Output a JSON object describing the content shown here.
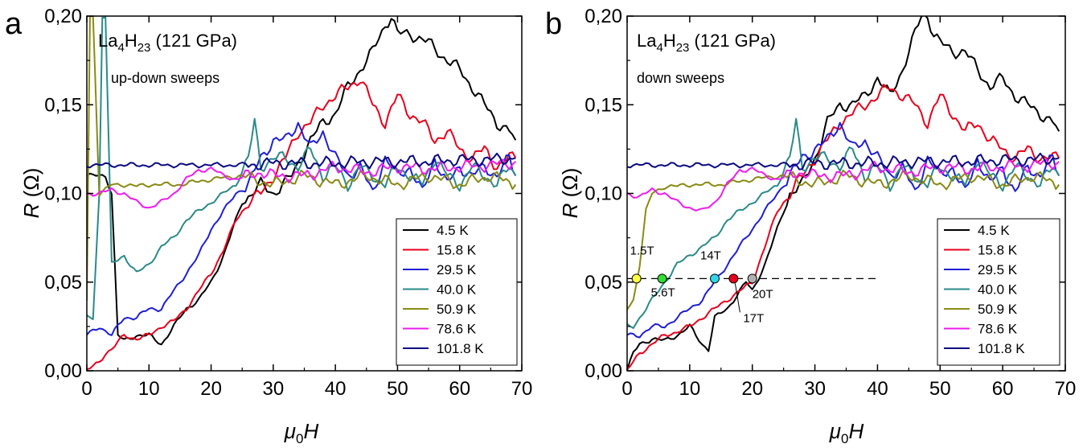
{
  "panel_letters": [
    "a",
    "b"
  ],
  "panels": [
    {
      "formula_main": "La",
      "formula_sub1": "4",
      "formula_mid": "H",
      "formula_sub2": "23",
      "formula_tail": " (121 GPa)",
      "subtitle": "up-down sweeps"
    },
    {
      "formula_main": "La",
      "formula_sub1": "4",
      "formula_mid": "H",
      "formula_sub2": "23",
      "formula_tail": " (121 GPa)",
      "subtitle": "down sweeps"
    }
  ],
  "axes": {
    "xlabel_main": "μ",
    "xlabel_sub": "0",
    "xlabel_tail": "H",
    "ylabel_main": "R",
    "ylabel_tail": " (Ω)",
    "xlim": [
      0,
      70
    ],
    "ylim": [
      0,
      0.2
    ],
    "xticks": [
      0,
      10,
      20,
      30,
      40,
      50,
      60,
      70
    ],
    "xtick_labels": [
      "0",
      "10",
      "20",
      "30",
      "40",
      "50",
      "60",
      "70"
    ],
    "yticks": [
      0,
      0.05,
      0.1,
      0.15,
      0.2
    ],
    "ytick_labels": [
      "0,00",
      "0,05",
      "0,10",
      "0,15",
      "0,20"
    ]
  },
  "legend": {
    "placement": "bottom-right",
    "entries": [
      {
        "label": "4.5 K",
        "color": "#000000"
      },
      {
        "label": "15.8 K",
        "color": "#e8001c"
      },
      {
        "label": "29.5 K",
        "color": "#1f1fd6"
      },
      {
        "label": "40.0 K",
        "color": "#2a8a8a"
      },
      {
        "label": "50.9 K",
        "color": "#8a8a14"
      },
      {
        "label": "78.6 K",
        "color": "#ee1cee"
      },
      {
        "label": "101.8 K",
        "color": "#0a0a80"
      }
    ]
  },
  "chart_data": [
    {
      "type": "line",
      "panel": "a",
      "xlim": [
        0,
        70
      ],
      "ylim": [
        0,
        0.2
      ],
      "series": [
        {
          "name": "4.5 K",
          "color": "#000000",
          "x": [
            0,
            1.5,
            3,
            4,
            4.5,
            5,
            6,
            8,
            10,
            12,
            14,
            16,
            18,
            20,
            22,
            25,
            28,
            30,
            33,
            36,
            38,
            40,
            42,
            44,
            46,
            48,
            49,
            50,
            52,
            55,
            58,
            60,
            62,
            64,
            66,
            68,
            69
          ],
          "y": [
            0.11,
            0.11,
            0.11,
            0.1,
            0.06,
            0.02,
            0.017,
            0.02,
            0.02,
            0.015,
            0.025,
            0.035,
            0.04,
            0.05,
            0.065,
            0.095,
            0.105,
            0.1,
            0.11,
            0.13,
            0.14,
            0.145,
            0.16,
            0.17,
            0.18,
            0.195,
            0.2,
            0.19,
            0.19,
            0.185,
            0.175,
            0.17,
            0.16,
            0.15,
            0.14,
            0.135,
            0.13
          ]
        },
        {
          "name": "15.8 K",
          "color": "#e8001c",
          "x": [
            0,
            2,
            3,
            4,
            6,
            8,
            10,
            12,
            14,
            16,
            18,
            20,
            22,
            24,
            26,
            28,
            30,
            32,
            34,
            36,
            38,
            40,
            42,
            44,
            46,
            48,
            50,
            52,
            54,
            56,
            58,
            60,
            62,
            64,
            66,
            68,
            69
          ],
          "y": [
            0,
            0.005,
            0.01,
            0.012,
            0.02,
            0.018,
            0.02,
            0.025,
            0.028,
            0.035,
            0.045,
            0.055,
            0.068,
            0.085,
            0.095,
            0.1,
            0.11,
            0.12,
            0.135,
            0.14,
            0.15,
            0.155,
            0.16,
            0.165,
            0.15,
            0.14,
            0.155,
            0.145,
            0.14,
            0.13,
            0.135,
            0.125,
            0.12,
            0.125,
            0.115,
            0.12,
            0.12
          ]
        },
        {
          "name": "29.5 K",
          "color": "#1f1fd6",
          "x": [
            0,
            2,
            4,
            6,
            8,
            10,
            12,
            14,
            16,
            18,
            20,
            22,
            24,
            26,
            28,
            30,
            32,
            34,
            36,
            38,
            40,
            42,
            44,
            46,
            48,
            50,
            52,
            54,
            56,
            58,
            60,
            62,
            64,
            66,
            68,
            69
          ],
          "y": [
            0.02,
            0.025,
            0.02,
            0.03,
            0.03,
            0.035,
            0.035,
            0.045,
            0.055,
            0.065,
            0.08,
            0.09,
            0.1,
            0.105,
            0.12,
            0.13,
            0.13,
            0.14,
            0.125,
            0.135,
            0.12,
            0.11,
            0.115,
            0.1,
            0.12,
            0.11,
            0.115,
            0.1,
            0.12,
            0.105,
            0.115,
            0.11,
            0.115,
            0.11,
            0.12,
            0.11
          ]
        },
        {
          "name": "40.0 K",
          "color": "#2a8a8a",
          "x": [
            0,
            1,
            2,
            2.5,
            3,
            4,
            6,
            8,
            10,
            12,
            14,
            16,
            18,
            20,
            22,
            24,
            26,
            27,
            28,
            30,
            32,
            34,
            36,
            38,
            40,
            42,
            44,
            46,
            48,
            50,
            52,
            54,
            56,
            58,
            60,
            62,
            64,
            66,
            68,
            69
          ],
          "y": [
            0.03,
            0.03,
            0.1,
            0.2,
            0.2,
            0.06,
            0.065,
            0.055,
            0.06,
            0.07,
            0.075,
            0.085,
            0.09,
            0.095,
            0.1,
            0.105,
            0.12,
            0.14,
            0.115,
            0.12,
            0.12,
            0.115,
            0.125,
            0.11,
            0.115,
            0.105,
            0.115,
            0.11,
            0.105,
            0.115,
            0.11,
            0.105,
            0.12,
            0.11,
            0.105,
            0.115,
            0.11,
            0.105,
            0.115,
            0.11
          ]
        },
        {
          "name": "50.9 K",
          "color": "#8a8a14",
          "x": [
            0,
            0.5,
            1,
            1.5,
            2,
            3,
            4,
            6,
            8,
            10,
            15,
            20,
            25,
            30,
            35,
            40,
            45,
            50,
            55,
            60,
            65,
            69
          ],
          "y": [
            0.04,
            0.2,
            0.2,
            0.15,
            0.1,
            0.102,
            0.105,
            0.105,
            0.104,
            0.105,
            0.105,
            0.108,
            0.11,
            0.105,
            0.11,
            0.105,
            0.11,
            0.105,
            0.11,
            0.105,
            0.11,
            0.105
          ]
        },
        {
          "name": "78.6 K",
          "color": "#ee1cee",
          "x": [
            0,
            2,
            4,
            6,
            8,
            10,
            12,
            14,
            16,
            18,
            20,
            22,
            24,
            26,
            28,
            30,
            35,
            40,
            45,
            50,
            55,
            60,
            65,
            69
          ],
          "y": [
            0.1,
            0.1,
            0.102,
            0.1,
            0.095,
            0.092,
            0.095,
            0.1,
            0.108,
            0.113,
            0.114,
            0.11,
            0.108,
            0.11,
            0.112,
            0.11,
            0.11,
            0.115,
            0.112,
            0.115,
            0.114,
            0.115,
            0.116,
            0.118
          ]
        },
        {
          "name": "101.8 K",
          "color": "#0a0a80",
          "x": [
            0,
            5,
            10,
            15,
            20,
            25,
            30,
            35,
            40,
            45,
            50,
            55,
            60,
            65,
            69
          ],
          "y": [
            0.116,
            0.116,
            0.116,
            0.116,
            0.116,
            0.116,
            0.117,
            0.117,
            0.117,
            0.118,
            0.118,
            0.118,
            0.119,
            0.119,
            0.12
          ]
        }
      ]
    },
    {
      "type": "line",
      "panel": "b",
      "xlim": [
        0,
        70
      ],
      "ylim": [
        0,
        0.2
      ],
      "threshold": {
        "y": 0.052,
        "x_end": 40
      },
      "markers": [
        {
          "x": 1.5,
          "color": "#ffff44",
          "label": "1.5T"
        },
        {
          "x": 5.6,
          "color": "#33dd33",
          "label": "5.6T"
        },
        {
          "x": 14,
          "color": "#33d6e8",
          "label": "14T"
        },
        {
          "x": 17,
          "color": "#e8001c",
          "label": "17T"
        },
        {
          "x": 20,
          "color": "#b0b0b0",
          "label": "20T"
        }
      ],
      "series": [
        {
          "name": "4.5 K",
          "color": "#000000",
          "x": [
            0,
            1,
            2,
            4,
            6,
            8,
            10,
            12,
            13,
            14,
            16,
            18,
            19,
            20,
            22,
            24,
            26,
            28,
            30,
            32,
            34,
            36,
            38,
            40,
            42,
            44,
            46,
            47,
            48,
            49,
            50,
            52,
            54,
            56,
            58,
            60,
            62,
            64,
            66,
            68,
            69
          ],
          "y": [
            0,
            0.01,
            0.015,
            0.018,
            0.017,
            0.02,
            0.025,
            0.015,
            0.012,
            0.03,
            0.035,
            0.045,
            0.05,
            0.045,
            0.06,
            0.08,
            0.1,
            0.105,
            0.12,
            0.14,
            0.15,
            0.15,
            0.155,
            0.165,
            0.155,
            0.17,
            0.19,
            0.2,
            0.2,
            0.19,
            0.185,
            0.18,
            0.18,
            0.17,
            0.16,
            0.165,
            0.155,
            0.15,
            0.145,
            0.14,
            0.135
          ]
        },
        {
          "name": "15.8 K",
          "color": "#e8001c",
          "x": [
            0,
            2,
            4,
            6,
            8,
            10,
            12,
            14,
            16,
            18,
            20,
            22,
            24,
            26,
            28,
            30,
            32,
            34,
            36,
            38,
            40,
            42,
            44,
            46,
            48,
            50,
            52,
            54,
            56,
            58,
            60,
            62,
            64,
            66,
            68,
            69
          ],
          "y": [
            0,
            0.01,
            0.015,
            0.02,
            0.022,
            0.025,
            0.03,
            0.035,
            0.04,
            0.045,
            0.05,
            0.07,
            0.09,
            0.1,
            0.11,
            0.12,
            0.13,
            0.14,
            0.145,
            0.15,
            0.155,
            0.16,
            0.155,
            0.15,
            0.14,
            0.155,
            0.145,
            0.135,
            0.14,
            0.13,
            0.125,
            0.12,
            0.125,
            0.12,
            0.12,
            0.12
          ]
        },
        {
          "name": "29.5 K",
          "color": "#1f1fd6",
          "x": [
            0,
            2,
            4,
            6,
            8,
            10,
            12,
            14,
            16,
            18,
            20,
            22,
            24,
            26,
            28,
            30,
            32,
            34,
            36,
            38,
            40,
            42,
            44,
            46,
            48,
            50,
            52,
            54,
            56,
            58,
            60,
            62,
            64,
            66,
            68,
            69
          ],
          "y": [
            0.02,
            0.02,
            0.025,
            0.025,
            0.03,
            0.035,
            0.04,
            0.05,
            0.06,
            0.07,
            0.08,
            0.09,
            0.1,
            0.11,
            0.12,
            0.125,
            0.13,
            0.14,
            0.125,
            0.13,
            0.12,
            0.11,
            0.115,
            0.1,
            0.12,
            0.11,
            0.115,
            0.1,
            0.12,
            0.105,
            0.115,
            0.1,
            0.115,
            0.11,
            0.12,
            0.11
          ]
        },
        {
          "name": "40.0 K",
          "color": "#2a8a8a",
          "x": [
            0,
            1,
            2,
            3,
            4,
            6,
            8,
            10,
            12,
            14,
            16,
            18,
            20,
            22,
            24,
            26,
            27,
            28,
            30,
            32,
            34,
            36,
            38,
            40,
            42,
            44,
            46,
            48,
            50,
            52,
            54,
            56,
            58,
            60,
            62,
            64,
            66,
            68,
            69
          ],
          "y": [
            0.025,
            0.025,
            0.03,
            0.035,
            0.04,
            0.05,
            0.06,
            0.065,
            0.07,
            0.075,
            0.085,
            0.09,
            0.095,
            0.1,
            0.105,
            0.12,
            0.14,
            0.115,
            0.12,
            0.12,
            0.115,
            0.125,
            0.11,
            0.115,
            0.105,
            0.115,
            0.11,
            0.105,
            0.115,
            0.11,
            0.105,
            0.12,
            0.11,
            0.105,
            0.115,
            0.11,
            0.105,
            0.115,
            0.11
          ]
        },
        {
          "name": "50.9 K",
          "color": "#8a8a14",
          "x": [
            0,
            1,
            2,
            3,
            4,
            6,
            8,
            10,
            15,
            20,
            25,
            30,
            35,
            40,
            45,
            50,
            55,
            60,
            65,
            69
          ],
          "y": [
            0.035,
            0.04,
            0.06,
            0.09,
            0.1,
            0.104,
            0.104,
            0.105,
            0.105,
            0.108,
            0.11,
            0.105,
            0.11,
            0.105,
            0.11,
            0.105,
            0.11,
            0.105,
            0.11,
            0.105
          ]
        },
        {
          "name": "78.6 K",
          "color": "#ee1cee",
          "x": [
            0,
            2,
            4,
            6,
            8,
            10,
            12,
            14,
            16,
            18,
            20,
            22,
            24,
            26,
            28,
            30,
            35,
            40,
            45,
            50,
            55,
            60,
            65,
            69
          ],
          "y": [
            0.1,
            0.098,
            0.102,
            0.1,
            0.095,
            0.092,
            0.09,
            0.095,
            0.105,
            0.113,
            0.114,
            0.11,
            0.108,
            0.11,
            0.112,
            0.11,
            0.11,
            0.115,
            0.112,
            0.115,
            0.114,
            0.115,
            0.116,
            0.118
          ]
        },
        {
          "name": "101.8 K",
          "color": "#0a0a80",
          "x": [
            0,
            5,
            10,
            15,
            20,
            25,
            30,
            35,
            40,
            45,
            50,
            55,
            60,
            65,
            69
          ],
          "y": [
            0.116,
            0.116,
            0.116,
            0.116,
            0.116,
            0.116,
            0.117,
            0.117,
            0.117,
            0.118,
            0.118,
            0.118,
            0.119,
            0.119,
            0.12
          ]
        }
      ]
    }
  ]
}
